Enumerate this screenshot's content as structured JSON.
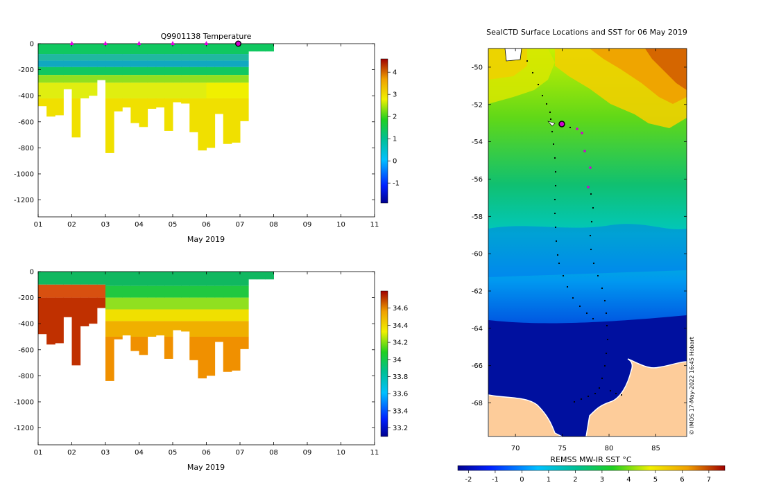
{
  "chart_data": [
    {
      "type": "heatmap",
      "title": "Q9901138  Temperature",
      "xlabel": "May 2019",
      "ylabel": "",
      "x_ticks": [
        "01",
        "02",
        "03",
        "04",
        "05",
        "06",
        "07",
        "08",
        "09",
        "10",
        "11"
      ],
      "y_ticks": [
        0,
        -200,
        -400,
        -600,
        -800,
        -1000,
        -1200
      ],
      "ylim": [
        -1330,
        0
      ],
      "colorbar": {
        "min": -1.9,
        "max": 4.6,
        "ticks": [
          4,
          3,
          2,
          1,
          0,
          -1
        ]
      },
      "profile_days": [
        1.0,
        1.25,
        1.5,
        1.75,
        2.0,
        2.25,
        2.5,
        2.75,
        3.0,
        3.25,
        3.5,
        3.75,
        4.0,
        4.25,
        4.5,
        4.75,
        5.0,
        5.25,
        5.5,
        5.75,
        6.0,
        6.25,
        6.5,
        6.75,
        7.0,
        7.25,
        7.5,
        7.75
      ],
      "profile_max_depth": [
        480,
        560,
        550,
        350,
        720,
        420,
        400,
        280,
        840,
        520,
        490,
        610,
        640,
        500,
        490,
        670,
        450,
        460,
        680,
        820,
        800,
        540,
        770,
        760,
        595,
        60,
        60,
        60
      ],
      "surface_markers_days": [
        2,
        3,
        4,
        5,
        6
      ],
      "current_day": 7
    },
    {
      "type": "heatmap",
      "title": "",
      "xlabel": "May 2019",
      "ylabel": "",
      "x_ticks": [
        "01",
        "02",
        "03",
        "04",
        "05",
        "06",
        "07",
        "08",
        "09",
        "10",
        "11"
      ],
      "y_ticks": [
        0,
        -200,
        -400,
        -600,
        -800,
        -1000,
        -1200
      ],
      "ylim": [
        -1330,
        0
      ],
      "colorbar": {
        "min": 33.1,
        "max": 34.8,
        "ticks": [
          34.6,
          34.4,
          34.2,
          34,
          33.8,
          33.6,
          33.4,
          33.2
        ]
      }
    },
    {
      "type": "heatmap",
      "title": "SealCTD Surface Locations and SST for 06 May 2019",
      "xlabel": "",
      "ylabel": "",
      "x_ticks": [
        70,
        75,
        80,
        85
      ],
      "y_ticks": [
        -50,
        -52,
        -54,
        -56,
        -58,
        -60,
        -62,
        -64,
        -66,
        -68
      ],
      "xlim": [
        67.1,
        88.3
      ],
      "ylim": [
        -69.8,
        -49.0
      ],
      "colorbar": {
        "label": "REMSS MW-IR SST °C",
        "min": -2.4,
        "max": 7.6,
        "ticks": [
          -2,
          -1,
          0,
          1,
          2,
          3,
          4,
          5,
          6,
          7
        ]
      },
      "current_position": {
        "lon": 74.9,
        "lat": -53.1
      },
      "credit": "© IMOS 17-May-2022 16:45 Hobart"
    }
  ]
}
